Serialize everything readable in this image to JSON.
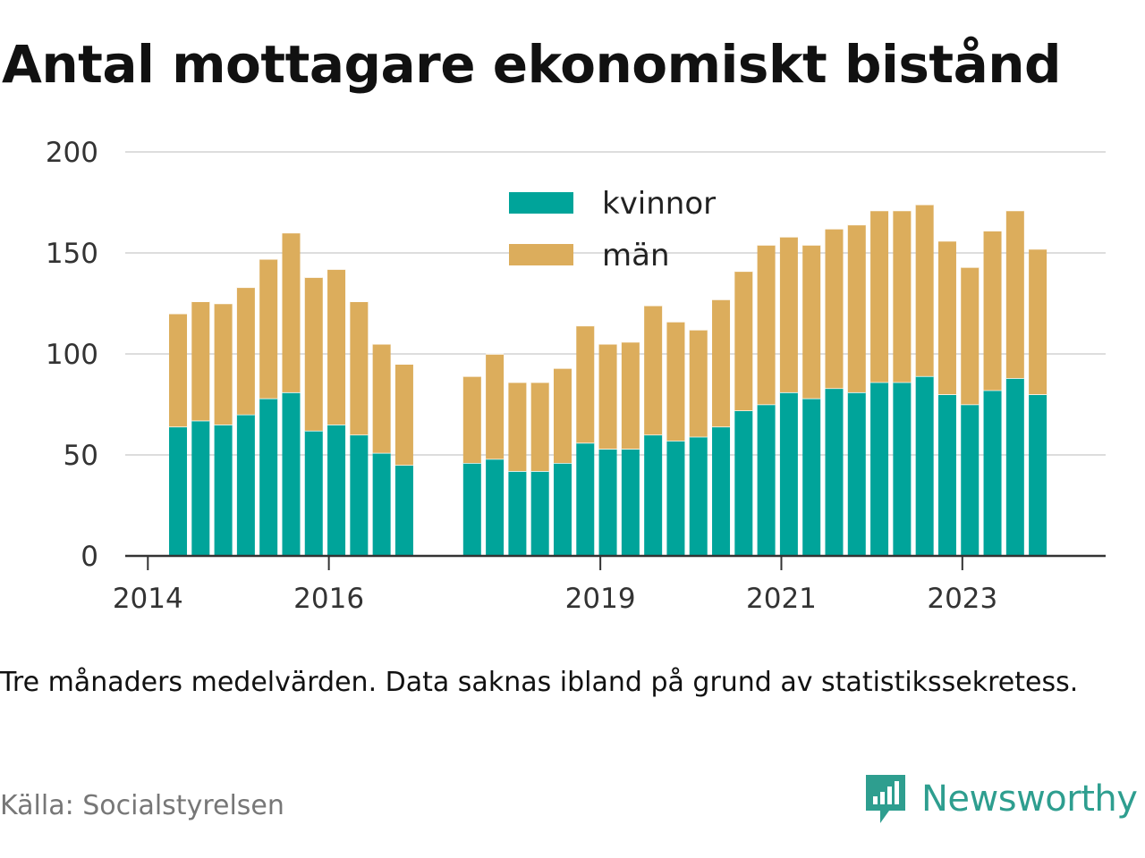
{
  "title": "Antal mottagare ekonomiskt bistånd",
  "note": "Tre månaders medelvärden. Data saknas ibland på grund av statistikssekretess.",
  "source": "Källa: Socialstyrelsen",
  "brand": {
    "name": "Newsworthy",
    "icon": "newsworthy-logo-icon",
    "color": "#2e9e8f"
  },
  "chart_data": {
    "type": "bar",
    "stacked": true,
    "title": "Antal mottagare ekonomiskt bistånd",
    "ylim": [
      0,
      200
    ],
    "yticks": [
      0,
      50,
      100,
      150,
      200
    ],
    "xticks": [
      {
        "label": "2014",
        "date": "2014-01"
      },
      {
        "label": "2016",
        "date": "2016-01"
      },
      {
        "label": "2019",
        "date": "2019-01"
      },
      {
        "label": "2021",
        "date": "2021-01"
      },
      {
        "label": "2023",
        "date": "2023-01"
      }
    ],
    "xlim": [
      "2013-10",
      "2024-08"
    ],
    "grid": true,
    "legend_position": "top-center",
    "categories": [
      "2014-05",
      "2014-08",
      "2014-11",
      "2015-02",
      "2015-05",
      "2015-08",
      "2015-11",
      "2016-02",
      "2016-05",
      "2016-08",
      "2016-11",
      "2017-08",
      "2017-11",
      "2018-02",
      "2018-05",
      "2018-08",
      "2018-11",
      "2019-02",
      "2019-05",
      "2019-08",
      "2019-11",
      "2020-02",
      "2020-05",
      "2020-08",
      "2020-11",
      "2021-02",
      "2021-05",
      "2021-08",
      "2021-11",
      "2022-02",
      "2022-05",
      "2022-08",
      "2022-11",
      "2023-02",
      "2023-05",
      "2023-08",
      "2023-11"
    ],
    "series": [
      {
        "name": "kvinnor",
        "color": "#00a49a",
        "values": [
          64,
          67,
          65,
          70,
          78,
          81,
          62,
          65,
          60,
          51,
          45,
          46,
          48,
          42,
          42,
          46,
          56,
          53,
          53,
          60,
          57,
          59,
          64,
          72,
          75,
          81,
          78,
          83,
          81,
          86,
          86,
          89,
          80,
          75,
          82,
          88,
          80
        ]
      },
      {
        "name": "män",
        "color": "#dcad5c",
        "values": [
          56,
          59,
          60,
          63,
          69,
          79,
          76,
          77,
          66,
          54,
          50,
          43,
          52,
          44,
          44,
          47,
          58,
          52,
          53,
          64,
          59,
          53,
          63,
          69,
          79,
          77,
          76,
          79,
          83,
          85,
          85,
          85,
          76,
          68,
          79,
          83,
          72
        ]
      }
    ]
  }
}
